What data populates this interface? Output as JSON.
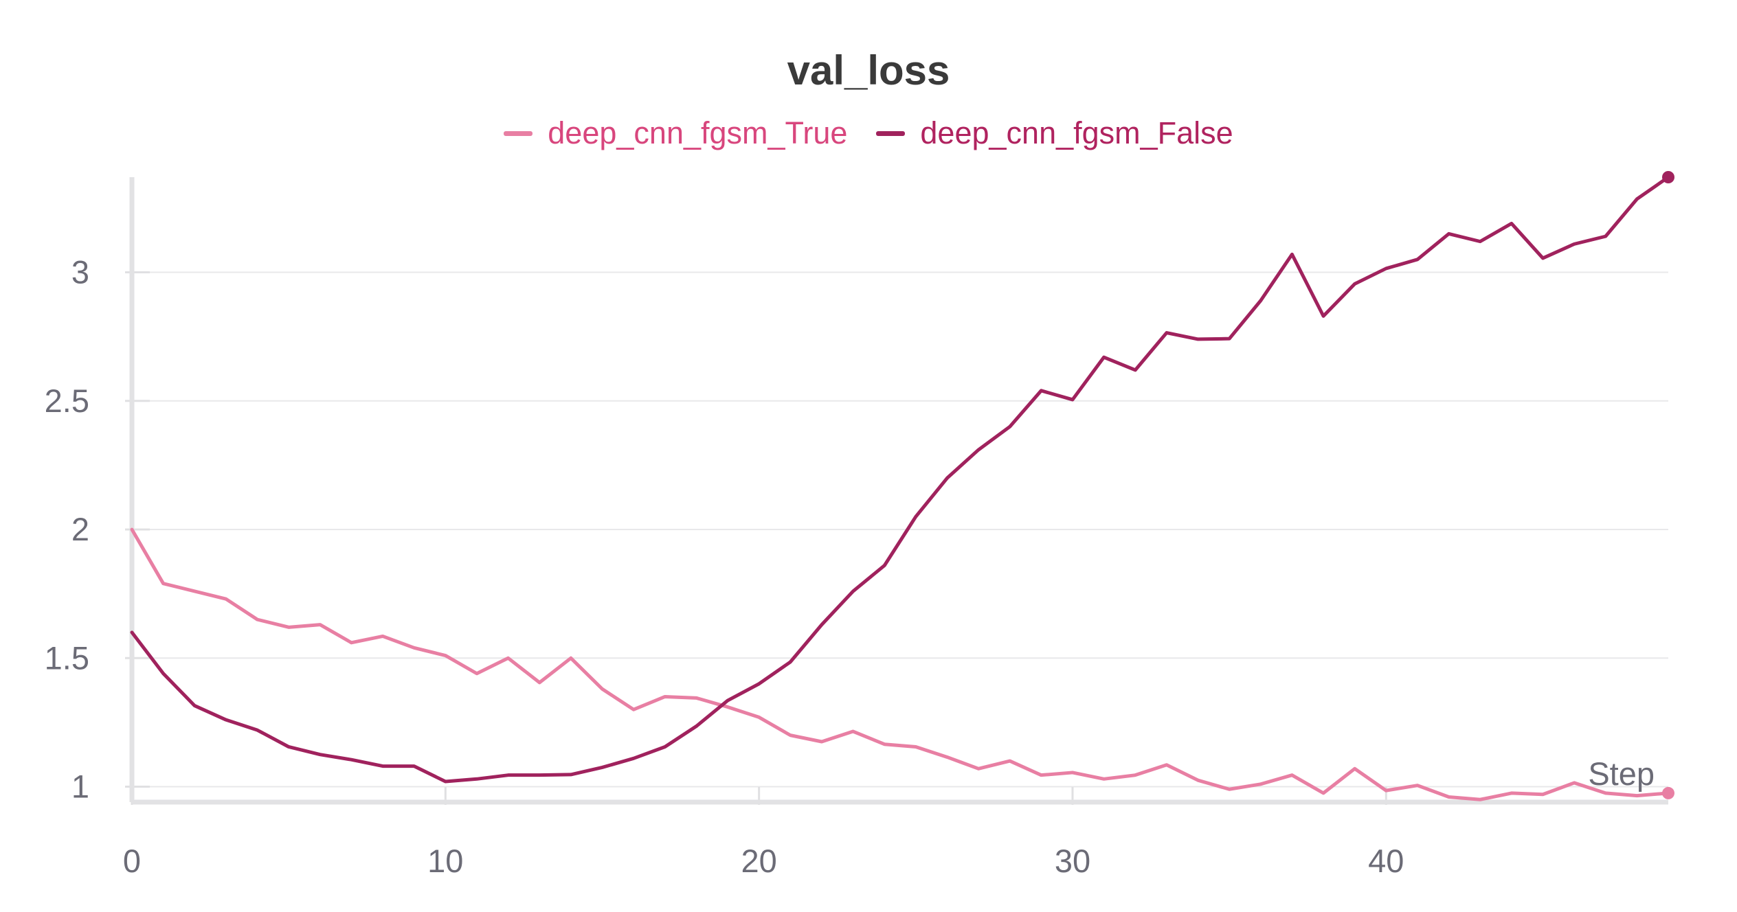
{
  "chart_data": {
    "type": "line",
    "title": "val_loss",
    "xlabel": "Step",
    "ylabel": "",
    "xlim": [
      0,
      49
    ],
    "ylim": [
      0.94,
      3.37
    ],
    "x_ticks": [
      0,
      10,
      20,
      30,
      40
    ],
    "y_ticks": [
      1,
      1.5,
      2,
      2.5,
      3
    ],
    "y_tick_labels": [
      "1",
      "1.5",
      "2",
      "2.5",
      "3"
    ],
    "grid": true,
    "legend_position": "top-center",
    "x": [
      0,
      1,
      2,
      3,
      4,
      5,
      6,
      7,
      8,
      9,
      10,
      11,
      12,
      13,
      14,
      15,
      16,
      17,
      18,
      19,
      20,
      21,
      22,
      23,
      24,
      25,
      26,
      27,
      28,
      29,
      30,
      31,
      32,
      33,
      34,
      35,
      36,
      37,
      38,
      39,
      40,
      41,
      42,
      43,
      44,
      45,
      46,
      47,
      48,
      49
    ],
    "series": [
      {
        "name": "deep_cnn_fgsm_True",
        "color": "#e87fa3",
        "values": [
          2.0,
          1.79,
          1.76,
          1.73,
          1.65,
          1.62,
          1.63,
          1.56,
          1.585,
          1.54,
          1.51,
          1.44,
          1.5,
          1.405,
          1.5,
          1.38,
          1.3,
          1.35,
          1.345,
          1.31,
          1.27,
          1.2,
          1.175,
          1.215,
          1.165,
          1.155,
          1.115,
          1.07,
          1.1,
          1.045,
          1.055,
          1.03,
          1.045,
          1.085,
          1.025,
          0.99,
          1.01,
          1.045,
          0.975,
          1.07,
          0.985,
          1.005,
          0.96,
          0.95,
          0.975,
          0.97,
          1.015,
          0.975,
          0.965,
          0.975
        ]
      },
      {
        "name": "deep_cnn_fgsm_False",
        "color": "#a0225d",
        "values": [
          1.6,
          1.44,
          1.315,
          1.26,
          1.22,
          1.155,
          1.125,
          1.105,
          1.08,
          1.08,
          1.02,
          1.03,
          1.045,
          1.045,
          1.047,
          1.075,
          1.11,
          1.155,
          1.235,
          1.335,
          1.4,
          1.485,
          1.63,
          1.76,
          1.86,
          2.05,
          2.2,
          2.31,
          2.4,
          2.54,
          2.505,
          2.67,
          2.62,
          2.765,
          2.74,
          2.742,
          2.89,
          3.07,
          2.83,
          2.955,
          3.015,
          3.05,
          3.15,
          3.12,
          3.19,
          3.055,
          3.11,
          3.14,
          3.285,
          3.37
        ]
      }
    ]
  }
}
